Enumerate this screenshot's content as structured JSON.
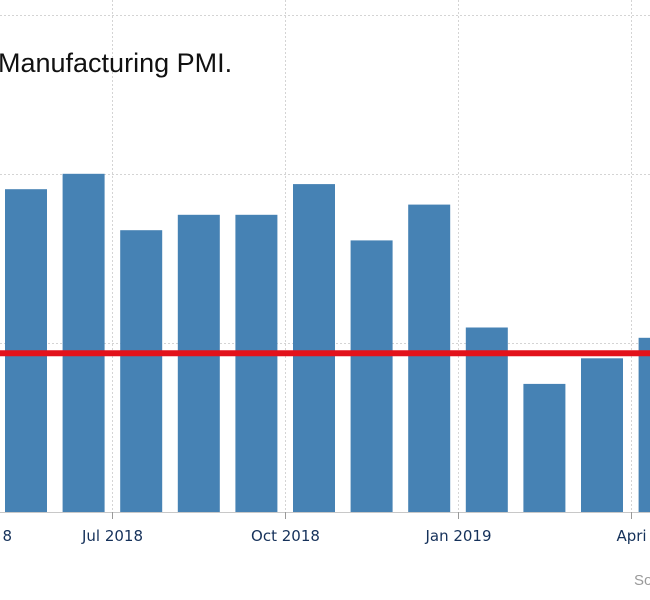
{
  "chart_data": {
    "type": "bar",
    "title": "Manufacturing PMI.",
    "categories": [
      "May 2018",
      "Jun 2018",
      "Jul 2018",
      "Aug 2018",
      "Sep 2018",
      "Oct 2018",
      "Nov 2018",
      "Dec 2018",
      "Jan 2019",
      "Feb 2019",
      "Mar 2019",
      "Apr 2019"
    ],
    "x_tick_labels": [
      {
        "category": "May 2018",
        "label": "8"
      },
      {
        "category": "Jul 2018",
        "label": "Jul 2018"
      },
      {
        "category": "Oct 2018",
        "label": "Oct 2018"
      },
      {
        "category": "Jan 2019",
        "label": "Jan 2019"
      },
      {
        "category": "Apr 2019",
        "label": "Apri"
      }
    ],
    "series": [
      {
        "values": [
          53.3,
          53.6,
          52.5,
          52.8,
          52.8,
          53.4,
          52.3,
          53.0,
          50.6,
          49.5,
          50.0,
          50.4
        ]
      }
    ],
    "reference_line": {
      "value": 50.1,
      "color": "#e3121b"
    },
    "ylim": [
      47.0,
      56.7
    ],
    "y_gridlines": [
      47.0,
      50.3,
      53.6,
      56.7
    ],
    "grid": true,
    "bar_color": "#4682b4",
    "xlabel": "",
    "ylabel": "",
    "source": "So"
  }
}
